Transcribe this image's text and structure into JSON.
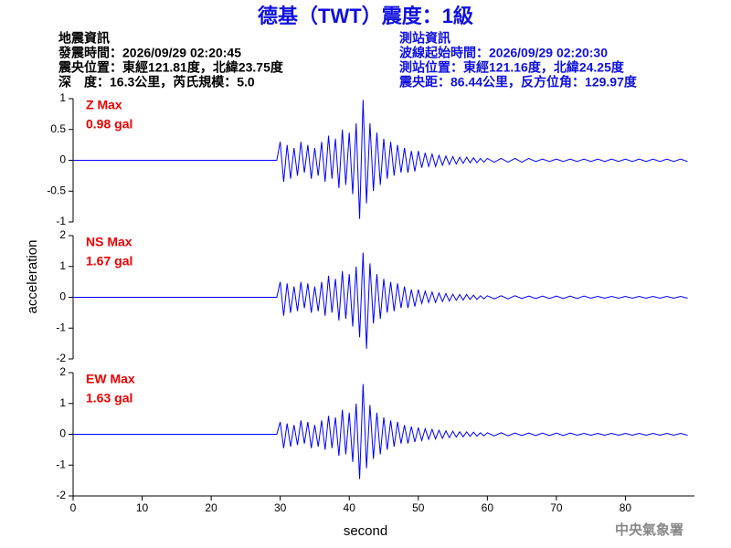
{
  "header": {
    "title": "德基（TWT）震度：1級",
    "left": [
      "地震資訊",
      "發震時間：2026/09/29 02:20:45",
      "震央位置：東經121.81度，北緯23.75度",
      "深　度：16.3公里，芮氏規模：5.0"
    ],
    "right": [
      "測站資訊",
      "波線起始時間：2026/09/29 02:20:30",
      "測站位置：東經121.16度，北緯24.25度",
      "震央距：86.44公里，反方位角：129.97度"
    ],
    "source": "中央氣象署"
  },
  "chart_data": [
    {
      "type": "line",
      "annotations": [
        "Z Max",
        "0.98 gal"
      ],
      "annotation_color": "#ee0000",
      "xlim": [
        0,
        90
      ],
      "ylim": [
        -1,
        1
      ],
      "yticks": [
        -1,
        -0.5,
        0,
        0.5,
        1
      ],
      "x": [
        0,
        10,
        20,
        29.5,
        30,
        30.5,
        31,
        31.5,
        32,
        32.5,
        33,
        33.5,
        34,
        34.5,
        35,
        35.5,
        36,
        36.5,
        37,
        37.5,
        38,
        38.5,
        39,
        39.5,
        40,
        40.5,
        41,
        41.5,
        42,
        42.5,
        43,
        43.5,
        44,
        44.5,
        45,
        45.5,
        46,
        46.5,
        47,
        47.5,
        48,
        48.5,
        49,
        49.5,
        50,
        50.5,
        51,
        51.5,
        52,
        52.5,
        53,
        53.5,
        54,
        54.5,
        55,
        55.5,
        56,
        56.5,
        57,
        57.5,
        58,
        58.5,
        59,
        59.5,
        60,
        61,
        62,
        63,
        64,
        65,
        66,
        67,
        68,
        69,
        70,
        71,
        72,
        73,
        74,
        75,
        76,
        77,
        78,
        79,
        80,
        81,
        82,
        83,
        84,
        85,
        86,
        87,
        88,
        89
      ],
      "series": [
        {
          "color": "#0000ff",
          "values": [
            0,
            0,
            0,
            0,
            0.3,
            -0.35,
            0.25,
            -0.3,
            0.2,
            -0.25,
            0.3,
            -0.2,
            0.25,
            -0.3,
            0.2,
            -0.25,
            0.3,
            -0.35,
            0.4,
            -0.3,
            0.35,
            -0.45,
            0.5,
            -0.4,
            0.45,
            -0.55,
            0.6,
            -0.95,
            0.98,
            -0.7,
            0.6,
            -0.5,
            0.45,
            -0.4,
            0.35,
            -0.3,
            0.3,
            -0.25,
            0.25,
            -0.2,
            0.2,
            -0.2,
            0.15,
            -0.18,
            0.15,
            -0.12,
            0.12,
            -0.1,
            0.1,
            -0.1,
            0.08,
            -0.08,
            0.07,
            -0.07,
            0.06,
            -0.06,
            0.05,
            -0.05,
            0.05,
            -0.04,
            0.04,
            -0.04,
            0.03,
            -0.03,
            0.03,
            -0.03,
            0.03,
            -0.03,
            0.03,
            -0.03,
            0.03,
            -0.02,
            0.02,
            -0.02,
            0.02,
            -0.02,
            0.02,
            -0.02,
            0.02,
            -0.02,
            0.02,
            -0.02,
            0.02,
            -0.02,
            0.02,
            -0.02,
            0.02,
            -0.02,
            0.02,
            -0.02,
            0.02,
            -0.02,
            0.02,
            -0.02
          ]
        }
      ]
    },
    {
      "type": "line",
      "annotations": [
        "NS Max",
        "1.67 gal"
      ],
      "annotation_color": "#ee0000",
      "ylabel": "acceleration",
      "xlim": [
        0,
        90
      ],
      "ylim": [
        -2,
        2
      ],
      "yticks": [
        -2,
        -1,
        0,
        1,
        2
      ],
      "x": [
        0,
        10,
        20,
        29.5,
        30,
        30.5,
        31,
        31.5,
        32,
        32.5,
        33,
        33.5,
        34,
        34.5,
        35,
        35.5,
        36,
        36.5,
        37,
        37.5,
        38,
        38.5,
        39,
        39.5,
        40,
        40.5,
        41,
        41.5,
        42,
        42.5,
        43,
        43.5,
        44,
        44.5,
        45,
        45.5,
        46,
        46.5,
        47,
        47.5,
        48,
        48.5,
        49,
        49.5,
        50,
        50.5,
        51,
        51.5,
        52,
        52.5,
        53,
        53.5,
        54,
        54.5,
        55,
        55.5,
        56,
        56.5,
        57,
        57.5,
        58,
        58.5,
        59,
        59.5,
        60,
        61,
        62,
        63,
        64,
        65,
        66,
        67,
        68,
        69,
        70,
        71,
        72,
        73,
        74,
        75,
        76,
        77,
        78,
        79,
        80,
        81,
        82,
        83,
        84,
        85,
        86,
        87,
        88,
        89
      ],
      "series": [
        {
          "color": "#0000ff",
          "values": [
            0,
            0,
            0,
            0,
            0.5,
            -0.6,
            0.45,
            -0.5,
            0.35,
            -0.45,
            0.5,
            -0.35,
            0.45,
            -0.5,
            0.35,
            -0.45,
            0.5,
            -0.6,
            0.7,
            -0.5,
            0.6,
            -0.75,
            0.85,
            -0.7,
            0.75,
            -0.95,
            1.0,
            -1.3,
            1.45,
            -1.67,
            1.1,
            -0.85,
            0.75,
            -0.7,
            0.6,
            -0.5,
            0.5,
            -0.45,
            0.45,
            -0.35,
            0.35,
            -0.35,
            0.25,
            -0.3,
            0.25,
            -0.2,
            0.2,
            -0.17,
            0.17,
            -0.17,
            0.14,
            -0.14,
            0.12,
            -0.12,
            0.1,
            -0.1,
            0.09,
            -0.09,
            0.09,
            -0.07,
            0.07,
            -0.07,
            0.05,
            -0.05,
            0.05,
            -0.05,
            0.05,
            -0.05,
            0.05,
            -0.04,
            0.04,
            -0.04,
            0.04,
            -0.04,
            0.04,
            -0.04,
            0.04,
            -0.04,
            0.04,
            -0.03,
            0.03,
            -0.03,
            0.03,
            -0.03,
            0.03,
            -0.03,
            0.03,
            -0.03,
            0.03,
            -0.03,
            0.03,
            -0.03,
            0.03,
            -0.03
          ]
        }
      ]
    },
    {
      "type": "line",
      "annotations": [
        "EW Max",
        "1.63 gal"
      ],
      "annotation_color": "#ee0000",
      "xlabel": "second",
      "xlim": [
        0,
        90
      ],
      "xticks": [
        0,
        10,
        20,
        30,
        40,
        50,
        60,
        70,
        80
      ],
      "ylim": [
        -2,
        2
      ],
      "yticks": [
        -2,
        -1,
        0,
        1,
        2
      ],
      "x": [
        0,
        10,
        20,
        29.5,
        30,
        30.5,
        31,
        31.5,
        32,
        32.5,
        33,
        33.5,
        34,
        34.5,
        35,
        35.5,
        36,
        36.5,
        37,
        37.5,
        38,
        38.5,
        39,
        39.5,
        40,
        40.5,
        41,
        41.5,
        42,
        42.5,
        43,
        43.5,
        44,
        44.5,
        45,
        45.5,
        46,
        46.5,
        47,
        47.5,
        48,
        48.5,
        49,
        49.5,
        50,
        50.5,
        51,
        51.5,
        52,
        52.5,
        53,
        53.5,
        54,
        54.5,
        55,
        55.5,
        56,
        56.5,
        57,
        57.5,
        58,
        58.5,
        59,
        59.5,
        60,
        61,
        62,
        63,
        64,
        65,
        66,
        67,
        68,
        69,
        70,
        71,
        72,
        73,
        74,
        75,
        76,
        77,
        78,
        79,
        80,
        81,
        82,
        83,
        84,
        85,
        86,
        87,
        88,
        89
      ],
      "series": [
        {
          "color": "#0000ff",
          "values": [
            0,
            0,
            0,
            0,
            0.4,
            -0.45,
            0.35,
            -0.4,
            0.3,
            -0.35,
            0.45,
            -0.3,
            0.4,
            -0.45,
            0.3,
            -0.4,
            0.45,
            -0.5,
            0.6,
            -0.45,
            0.55,
            -0.7,
            0.8,
            -0.65,
            0.7,
            -0.9,
            1.0,
            -1.45,
            1.63,
            -1.1,
            0.95,
            -0.8,
            0.7,
            -0.65,
            0.55,
            -0.5,
            0.45,
            -0.4,
            0.4,
            -0.3,
            0.3,
            -0.3,
            0.25,
            -0.25,
            0.22,
            -0.2,
            0.18,
            -0.16,
            0.16,
            -0.15,
            0.13,
            -0.13,
            0.11,
            -0.11,
            0.1,
            -0.09,
            0.08,
            -0.08,
            0.08,
            -0.07,
            0.07,
            -0.06,
            0.05,
            -0.05,
            0.05,
            -0.05,
            0.05,
            -0.05,
            0.04,
            -0.04,
            0.04,
            -0.04,
            0.04,
            -0.04,
            0.04,
            -0.04,
            0.04,
            -0.03,
            0.03,
            -0.03,
            0.03,
            -0.03,
            0.03,
            -0.03,
            0.03,
            -0.03,
            0.03,
            -0.03,
            0.03,
            -0.03,
            0.03,
            -0.03,
            0.03,
            -0.03
          ]
        }
      ]
    }
  ]
}
